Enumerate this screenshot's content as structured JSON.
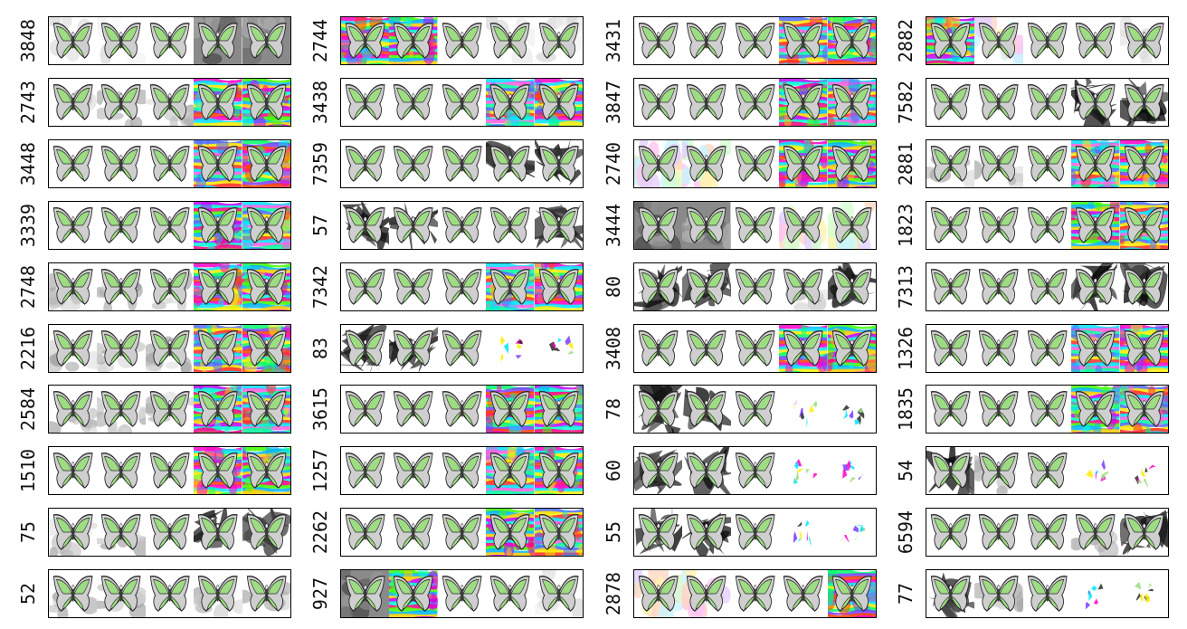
{
  "panel_labels": [
    [
      "3848",
      "2744",
      "3431",
      "2882"
    ],
    [
      "2743",
      "3438",
      "3847",
      "7582"
    ],
    [
      "3448",
      "7359",
      "2740",
      "2881"
    ],
    [
      "3339",
      "57",
      "3444",
      "1823"
    ],
    [
      "2748",
      "7342",
      "80",
      "7313"
    ],
    [
      "2216",
      "83",
      "3408",
      "1326"
    ],
    [
      "2584",
      "3615",
      "78",
      "1835"
    ],
    [
      "1510",
      "1257",
      "60",
      "54"
    ],
    [
      "75",
      "2262",
      "55",
      "6594"
    ],
    [
      "52",
      "927",
      "2878",
      "77"
    ]
  ],
  "frame_styles": [
    [
      [
        "light",
        "light",
        "plain",
        "gray",
        "gray"
      ],
      [
        "rainbow",
        "rainbow",
        "plain",
        "light",
        "light"
      ],
      [
        "plain",
        "plain",
        "plain",
        "rainbow",
        "rainbow"
      ],
      [
        "rainbow",
        "pastel",
        "plain",
        "plain",
        "light"
      ]
    ],
    [
      [
        "smudge",
        "smudge",
        "smudge",
        "rainbow",
        "rainbow"
      ],
      [
        "plain",
        "plain",
        "plain",
        "rainbow",
        "rainbow"
      ],
      [
        "plain",
        "plain",
        "plain",
        "rainbow",
        "rainbow"
      ],
      [
        "plain",
        "plain",
        "plain",
        "dark",
        "dark"
      ]
    ],
    [
      [
        "plain",
        "plain",
        "plain",
        "rainbow",
        "rainbow"
      ],
      [
        "plain",
        "plain",
        "plain",
        "dark",
        "dark"
      ],
      [
        "pastel",
        "pastel",
        "plain",
        "rainbow",
        "rainbow"
      ],
      [
        "smudge",
        "smudge",
        "plain",
        "rainbow",
        "rainbow"
      ]
    ],
    [
      [
        "plain",
        "plain",
        "plain",
        "rainbow",
        "rainbow"
      ],
      [
        "dark",
        "dark",
        "plain",
        "plain",
        "dark"
      ],
      [
        "gray",
        "gray",
        "plain",
        "pastel",
        "pastel"
      ],
      [
        "plain",
        "plain",
        "plain",
        "rainbow",
        "rainbow"
      ]
    ],
    [
      [
        "smudge",
        "smudge",
        "smudge",
        "rainbow",
        "rainbow"
      ],
      [
        "plain",
        "plain",
        "plain",
        "rainbow",
        "rainbow"
      ],
      [
        "dark",
        "dark",
        "plain",
        "smudge",
        "dark"
      ],
      [
        "plain",
        "plain",
        "plain",
        "dark",
        "dark"
      ]
    ],
    [
      [
        "smudge",
        "smudge",
        "smudge",
        "rainbow",
        "rainbow"
      ],
      [
        "dark",
        "dark",
        "plain",
        "fragment",
        "fragment"
      ],
      [
        "plain",
        "plain",
        "plain",
        "rainbow",
        "rainbow"
      ],
      [
        "plain",
        "plain",
        "plain",
        "rainbow",
        "rainbow"
      ]
    ],
    [
      [
        "smudge",
        "smudge",
        "smudge",
        "rainbow",
        "rainbow"
      ],
      [
        "plain",
        "plain",
        "plain",
        "rainbow",
        "rainbow"
      ],
      [
        "dark",
        "dark",
        "plain",
        "fragment",
        "fragment"
      ],
      [
        "plain",
        "plain",
        "plain",
        "rainbow",
        "rainbow"
      ]
    ],
    [
      [
        "plain",
        "plain",
        "plain",
        "rainbow",
        "rainbow"
      ],
      [
        "plain",
        "plain",
        "plain",
        "rainbow",
        "rainbow"
      ],
      [
        "dark",
        "dark",
        "plain",
        "fragment",
        "fragment"
      ],
      [
        "dark",
        "smudge",
        "plain",
        "fragment",
        "fragment"
      ]
    ],
    [
      [
        "smudge",
        "smudge",
        "plain",
        "dark",
        "dark"
      ],
      [
        "plain",
        "plain",
        "plain",
        "rainbow",
        "rainbow"
      ],
      [
        "dark",
        "dark",
        "plain",
        "fragment",
        "fragment"
      ],
      [
        "plain",
        "plain",
        "plain",
        "smudge",
        "dark"
      ]
    ],
    [
      [
        "smudge",
        "smudge",
        "plain",
        "smudge",
        "smudge"
      ],
      [
        "gray",
        "rainbow",
        "plain",
        "plain",
        "light"
      ],
      [
        "pastel",
        "pastel",
        "plain",
        "plain",
        "rainbow"
      ],
      [
        "dark",
        "smudge",
        "plain",
        "fragment",
        "fragment"
      ]
    ]
  ],
  "colors": {
    "wing_green": "#9edc84",
    "wing_edge": "#2a2a2a",
    "body_dark": "#3a3a3a",
    "eye_light": "#e8e8e8",
    "frame_border": "#000000"
  }
}
